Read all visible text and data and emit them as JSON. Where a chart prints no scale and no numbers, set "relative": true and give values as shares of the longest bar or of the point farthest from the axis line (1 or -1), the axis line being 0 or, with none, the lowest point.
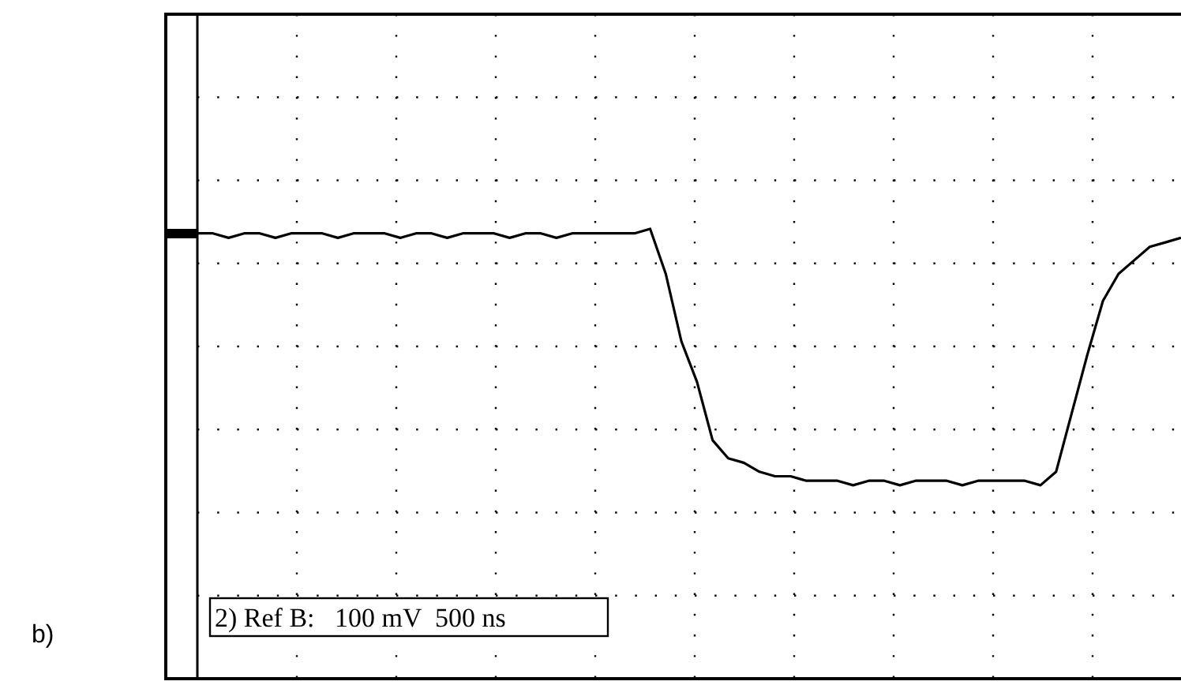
{
  "chart_data": {
    "type": "line",
    "relative": true,
    "grid": true,
    "marker": "none",
    "line_style": "solid",
    "categories": [
      null,
      null,
      null,
      null,
      null,
      null,
      null,
      null,
      null,
      null,
      null,
      null,
      null,
      null,
      null,
      null,
      null,
      null,
      null,
      null,
      null,
      null,
      null,
      null,
      null,
      null,
      null,
      null,
      null,
      null,
      null,
      null,
      null,
      null,
      null,
      null,
      null,
      null,
      null,
      null,
      null,
      null,
      null,
      null,
      null,
      null,
      null,
      null,
      null,
      null,
      null,
      null,
      null,
      null,
      null,
      null,
      null,
      null,
      null,
      null,
      null,
      null,
      null,
      null
    ],
    "series": [
      {
        "color": "#000000",
        "values": [
          0.99,
          0.99,
          0.98,
          0.99,
          0.99,
          0.98,
          0.99,
          0.99,
          0.99,
          0.98,
          0.99,
          0.99,
          0.99,
          0.98,
          0.99,
          0.99,
          0.98,
          0.99,
          0.99,
          0.99,
          0.98,
          0.99,
          0.99,
          0.98,
          0.99,
          0.99,
          0.99,
          0.99,
          0.99,
          1.0,
          0.9,
          0.75,
          0.66,
          0.53,
          0.49,
          0.48,
          0.46,
          0.45,
          0.45,
          0.44,
          0.44,
          0.44,
          0.43,
          0.44,
          0.44,
          0.43,
          0.44,
          0.44,
          0.44,
          0.43,
          0.44,
          0.44,
          0.44,
          0.44,
          0.43,
          0.46,
          0.59,
          0.72,
          0.84,
          0.9,
          0.93,
          0.96,
          0.97,
          0.98
        ]
      }
    ],
    "annotations": [
      "2) Ref B:   100 mV  500 ns",
      "b)"
    ]
  }
}
